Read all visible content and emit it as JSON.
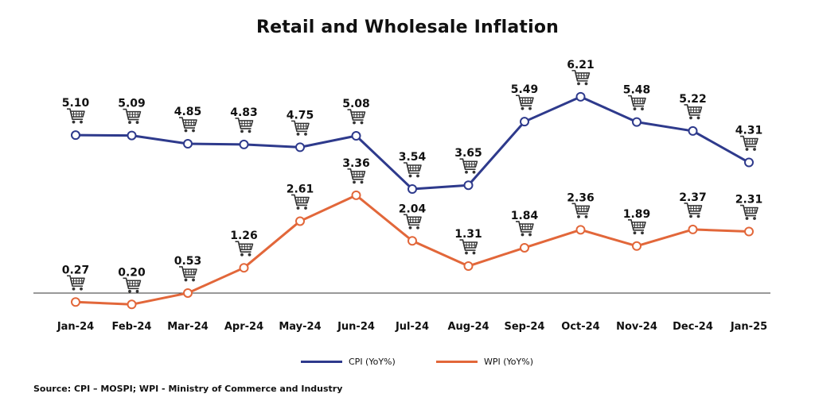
{
  "chart_data": {
    "type": "line",
    "title": "Retail and Wholesale Inflation",
    "categories": [
      "Jan-24",
      "Feb-24",
      "Mar-24",
      "Apr-24",
      "May-24",
      "Jun-24",
      "Jul-24",
      "Aug-24",
      "Sep-24",
      "Oct-24",
      "Nov-24",
      "Dec-24",
      "Jan-25"
    ],
    "series": [
      {
        "name": "CPI (YoY%)",
        "color": "#2e3a8c",
        "values": [
          5.1,
          5.09,
          4.85,
          4.83,
          4.75,
          5.08,
          3.54,
          3.65,
          5.49,
          6.21,
          5.48,
          5.22,
          4.31
        ],
        "labels": [
          "5.10",
          "5.09",
          "4.85",
          "4.83",
          "4.75",
          "5.08",
          "3.54",
          "3.65",
          "5.49",
          "6.21",
          "5.48",
          "5.22",
          "4.31"
        ]
      },
      {
        "name": "WPI (YoY%)",
        "color": "#e2673a",
        "values": [
          0.27,
          0.2,
          0.53,
          1.26,
          2.61,
          3.36,
          2.04,
          1.31,
          1.84,
          2.36,
          1.89,
          2.37,
          2.31
        ],
        "labels": [
          "0.27",
          "0.20",
          "0.53",
          "1.26",
          "2.61",
          "3.36",
          "2.04",
          "1.31",
          "1.84",
          "2.36",
          "1.89",
          "2.37",
          "2.31"
        ]
      }
    ],
    "ylim": [
      0,
      7
    ],
    "grid": false,
    "legend": "bottom-center",
    "marker_icon": "shopping-cart-icon"
  },
  "source": "Source: CPI – MOSPI; WPI - Ministry of Commerce and Industry"
}
